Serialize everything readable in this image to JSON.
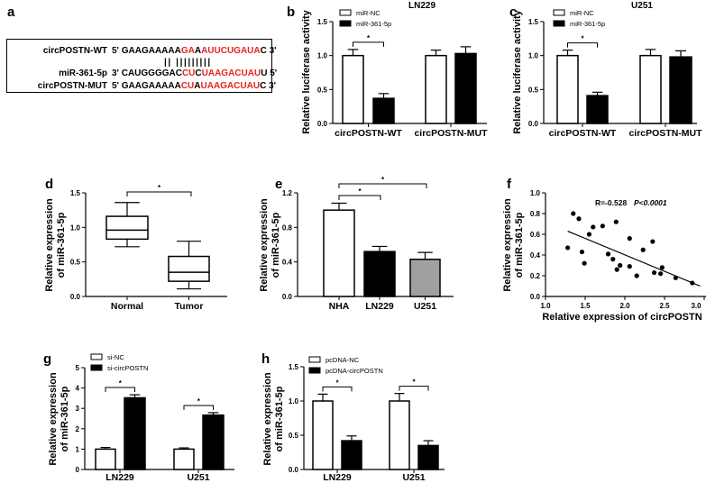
{
  "panel_a": {
    "letter": "a",
    "rows": [
      {
        "label": "circPOSTN-WT",
        "segments": [
          {
            "text": "5' GAAGAAAAA",
            "red": false
          },
          {
            "text": "GA",
            "red": true
          },
          {
            "text": "A",
            "red": false
          },
          {
            "text": "AUUCUGAUA",
            "red": true
          },
          {
            "text": "C 3'",
            "red": false
          }
        ]
      },
      {
        "label": "miR-361-5p",
        "segments": [
          {
            "text": "3' CAUGGGGAC",
            "red": false
          },
          {
            "text": "CU",
            "red": true
          },
          {
            "text": "C",
            "red": false
          },
          {
            "text": "UAAGACUAU",
            "red": true
          },
          {
            "text": "U 5'",
            "red": false
          }
        ]
      },
      {
        "label": "circPOSTN-MUT",
        "segments": [
          {
            "text": "5' GAAGAAAAA",
            "red": false
          },
          {
            "text": "CU",
            "red": true
          },
          {
            "text": "A",
            "red": false
          },
          {
            "text": "UAAGACUAU",
            "red": true
          },
          {
            "text": "C 3'",
            "red": false
          }
        ]
      }
    ],
    "pairing": "||  |||||||||",
    "colors": {
      "highlight": "#e8231f",
      "text": "#000000"
    }
  },
  "chart_data": [
    {
      "id": "b",
      "letter": "b",
      "type": "bar",
      "title": "LN229",
      "xlabel": "",
      "ylabel": [
        "Relative luciferase activity"
      ],
      "ylim": [
        0,
        1.5
      ],
      "yticks": [
        "0.0",
        "0.5",
        "1.0",
        "1.5"
      ],
      "categories": [
        "circPOSTN-WT",
        "circPOSTN-MUT"
      ],
      "series": [
        {
          "name": "miR-NC",
          "values": [
            1.0,
            1.0
          ],
          "errors": [
            0.09,
            0.08
          ],
          "color": "#ffffff"
        },
        {
          "name": "miR-361-5p",
          "values": [
            0.37,
            1.03
          ],
          "errors": [
            0.07,
            0.1
          ],
          "color": "#000000"
        }
      ],
      "significance": [
        {
          "label": "*",
          "category": "circPOSTN-WT"
        }
      ],
      "legend": "top-left"
    },
    {
      "id": "c",
      "letter": "c",
      "type": "bar",
      "title": "U251",
      "xlabel": "",
      "ylabel": [
        "Relative luciferase activity"
      ],
      "ylim": [
        0,
        1.5
      ],
      "yticks": [
        "0.0",
        "0.5",
        "1.0",
        "1.5"
      ],
      "categories": [
        "circPOSTN-WT",
        "circPOSTN-MUT"
      ],
      "series": [
        {
          "name": "miR-NC",
          "values": [
            1.0,
            1.0
          ],
          "errors": [
            0.08,
            0.09
          ],
          "color": "#ffffff"
        },
        {
          "name": "miR-361-5p",
          "values": [
            0.41,
            0.98
          ],
          "errors": [
            0.05,
            0.09
          ],
          "color": "#000000"
        }
      ],
      "significance": [
        {
          "label": "*",
          "category": "circPOSTN-WT"
        }
      ],
      "legend": "top-left"
    },
    {
      "id": "d",
      "letter": "d",
      "type": "box",
      "title": "",
      "xlabel": "",
      "ylabel": [
        "Relative expression",
        "of miR-361-5p"
      ],
      "ylim": [
        0,
        1.5
      ],
      "yticks": [
        "0.0",
        "0.5",
        "1.0",
        "1.5"
      ],
      "categories": [
        "Normal",
        "Tumor"
      ],
      "boxes": [
        {
          "min": 0.72,
          "q1": 0.83,
          "median": 0.96,
          "q3": 1.16,
          "max": 1.36
        },
        {
          "min": 0.11,
          "q1": 0.22,
          "median": 0.35,
          "q3": 0.58,
          "max": 0.8
        }
      ],
      "significance": [
        {
          "label": "*",
          "between": [
            "Normal",
            "Tumor"
          ]
        }
      ]
    },
    {
      "id": "e",
      "letter": "e",
      "type": "bar",
      "title": "",
      "xlabel": "",
      "ylabel": [
        "Relative expression",
        "of miR-361-5p"
      ],
      "ylim": [
        0,
        1.2
      ],
      "yticks": [
        "0.0",
        "0.4",
        "0.8",
        "1.2"
      ],
      "categories": [
        "NHA",
        "LN229",
        "U251"
      ],
      "values": [
        1.0,
        0.52,
        0.43
      ],
      "errors": [
        0.08,
        0.06,
        0.08
      ],
      "colors": [
        "#ffffff",
        "#000000",
        "#a0a0a0"
      ],
      "significance": [
        {
          "label": "*",
          "between": [
            "NHA",
            "LN229"
          ]
        },
        {
          "label": "*",
          "between": [
            "NHA",
            "U251"
          ]
        }
      ]
    },
    {
      "id": "f",
      "letter": "f",
      "type": "scatter",
      "title": "",
      "xlabel": "Relative expression of circPOSTN",
      "ylabel": [
        "Relative expression",
        "of miR-361-5p"
      ],
      "xlim": [
        1.0,
        3.0
      ],
      "ylim": [
        0,
        1.0
      ],
      "xticks": [
        "1.0",
        "1.5",
        "2.0",
        "2.5",
        "3.0"
      ],
      "yticks": [
        "0.0",
        "0.2",
        "0.4",
        "0.6",
        "0.8",
        "1.0"
      ],
      "points": [
        [
          1.28,
          0.47
        ],
        [
          1.35,
          0.8
        ],
        [
          1.42,
          0.75
        ],
        [
          1.46,
          0.43
        ],
        [
          1.49,
          0.32
        ],
        [
          1.55,
          0.6
        ],
        [
          1.6,
          0.67
        ],
        [
          1.72,
          0.68
        ],
        [
          1.79,
          0.41
        ],
        [
          1.85,
          0.36
        ],
        [
          1.89,
          0.72
        ],
        [
          1.9,
          0.26
        ],
        [
          1.94,
          0.3
        ],
        [
          2.06,
          0.56
        ],
        [
          2.06,
          0.29
        ],
        [
          2.15,
          0.2
        ],
        [
          2.23,
          0.45
        ],
        [
          2.35,
          0.53
        ],
        [
          2.37,
          0.23
        ],
        [
          2.45,
          0.22
        ],
        [
          2.47,
          0.28
        ],
        [
          2.64,
          0.18
        ],
        [
          2.85,
          0.13
        ]
      ],
      "fit_line": [
        [
          1.28,
          0.63
        ],
        [
          2.95,
          0.1
        ]
      ],
      "annotation_r": "R=-0.528",
      "annotation_p": "P<0.0001"
    },
    {
      "id": "g",
      "letter": "g",
      "type": "bar",
      "title": "",
      "xlabel": "",
      "ylabel": [
        "Relative expression",
        "of miR-361-5p"
      ],
      "ylim": [
        0,
        5
      ],
      "yticks": [
        "0",
        "1",
        "2",
        "3",
        "4",
        "5"
      ],
      "categories": [
        "LN229",
        "U251"
      ],
      "series": [
        {
          "name": "si-NC",
          "values": [
            1.0,
            1.0
          ],
          "errors": [
            0.08,
            0.06
          ],
          "color": "#ffffff"
        },
        {
          "name": "si-circPOSTN",
          "values": [
            3.52,
            2.67
          ],
          "errors": [
            0.15,
            0.12
          ],
          "color": "#000000"
        }
      ],
      "significance": [
        {
          "label": "*",
          "category": "LN229"
        },
        {
          "label": "*",
          "category": "U251"
        }
      ],
      "legend": "top-left"
    },
    {
      "id": "h",
      "letter": "h",
      "type": "bar",
      "title": "",
      "xlabel": "",
      "ylabel": [
        "Relative expression",
        "of miR-361-5p"
      ],
      "ylim": [
        0,
        1.5
      ],
      "yticks": [
        "0.0",
        "0.5",
        "1.0",
        "1.5"
      ],
      "categories": [
        "LN229",
        "U251"
      ],
      "series": [
        {
          "name": "pcDNA-NC",
          "values": [
            1.0,
            1.0
          ],
          "errors": [
            0.1,
            0.11
          ],
          "color": "#ffffff"
        },
        {
          "name": "pcDNA-circPOSTN",
          "values": [
            0.42,
            0.35
          ],
          "errors": [
            0.07,
            0.07
          ],
          "color": "#000000"
        }
      ],
      "significance": [
        {
          "label": "*",
          "category": "LN229"
        },
        {
          "label": "*",
          "category": "U251"
        }
      ],
      "legend": "top-left"
    }
  ]
}
